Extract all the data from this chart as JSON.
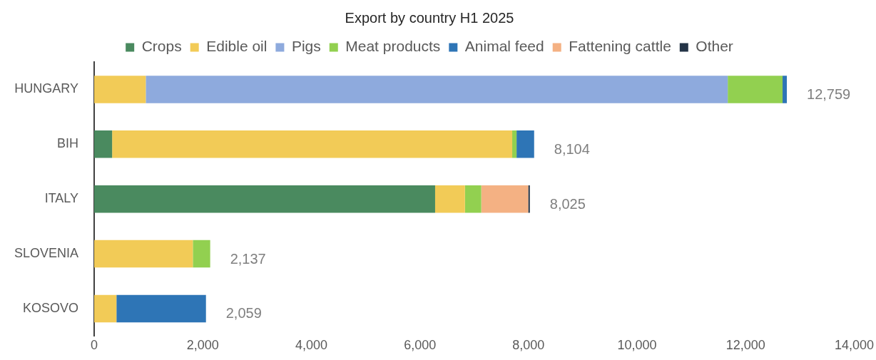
{
  "chart_data": {
    "type": "bar",
    "title": "Export by country H1 2025",
    "orientation": "horizontal",
    "stacked": true,
    "categories": [
      "HUNGARY",
      "BIH",
      "ITALY",
      "SLOVENIA",
      "KOSOVO"
    ],
    "series": [
      {
        "name": "Crops",
        "color": "#4a8a5f",
        "values": [
          null,
          330,
          6280,
          null,
          null
        ]
      },
      {
        "name": "Edible oil",
        "color": "#f2cb57",
        "values": [
          950,
          7370,
          550,
          1817,
          410
        ]
      },
      {
        "name": "Pigs",
        "color": "#8eaadd",
        "values": [
          10720,
          null,
          null,
          null,
          null
        ]
      },
      {
        "name": "Meat products",
        "color": "#92d050",
        "values": [
          1010,
          80,
          300,
          320,
          null
        ]
      },
      {
        "name": "Animal feed",
        "color": "#2e75b6",
        "values": [
          79,
          324,
          null,
          null,
          1649
        ]
      },
      {
        "name": "Fattening cattle",
        "color": "#f4b183",
        "values": [
          null,
          null,
          865,
          null,
          null
        ]
      },
      {
        "name": "Other",
        "color": "#243447",
        "values": [
          null,
          null,
          30,
          null,
          null
        ]
      }
    ],
    "totals": [
      "12,759",
      "8,104",
      "8,025",
      "2,137",
      "2,059"
    ],
    "xlim": [
      0,
      14000
    ],
    "xticks": [
      {
        "value": 0,
        "label": "0"
      },
      {
        "value": 2000,
        "label": "2,000"
      },
      {
        "value": 4000,
        "label": "4,000"
      },
      {
        "value": 6000,
        "label": "6,000"
      },
      {
        "value": 8000,
        "label": "8,000"
      },
      {
        "value": 10000,
        "label": "10,000"
      },
      {
        "value": 12000,
        "label": "12,000"
      },
      {
        "value": 14000,
        "label": "14,000"
      }
    ],
    "grid": false,
    "legend": "top"
  }
}
